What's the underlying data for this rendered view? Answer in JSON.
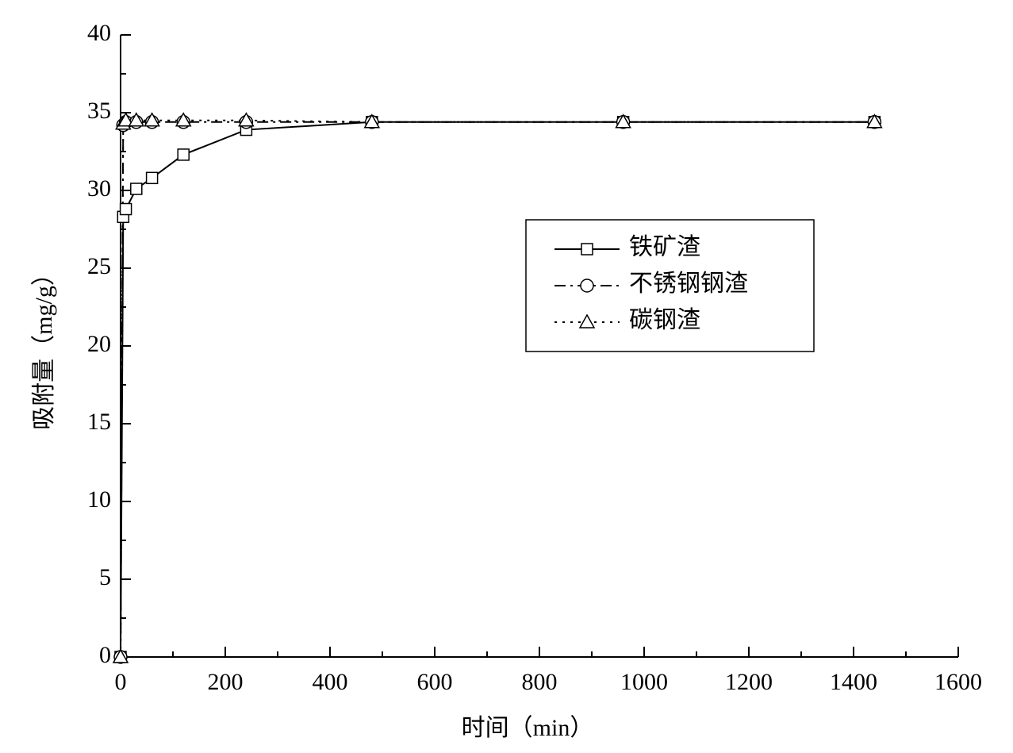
{
  "chart_data": {
    "type": "line",
    "x_label": "时间（min）",
    "y_label": "吸附量（mg/g）",
    "x": [
      0,
      5,
      10,
      30,
      60,
      120,
      240,
      480,
      960,
      1440
    ],
    "series": [
      {
        "name": "铁矿渣",
        "color": "#000000",
        "line_style": "solid",
        "marker": "square",
        "values": [
          0,
          28.3,
          28.8,
          30.1,
          30.8,
          32.3,
          33.9,
          34.4,
          34.4,
          34.4
        ]
      },
      {
        "name": "不锈钢钢渣",
        "color": "#000000",
        "line_style": "dashdot",
        "marker": "circle",
        "values": [
          0,
          34.2,
          34.4,
          34.4,
          34.4,
          34.4,
          34.4,
          34.4,
          34.4,
          34.4
        ]
      },
      {
        "name": "碳钢渣",
        "color": "#000000",
        "line_style": "dotted",
        "marker": "triangle",
        "values": [
          0,
          34.3,
          34.5,
          34.5,
          34.5,
          34.5,
          34.5,
          34.4,
          34.4,
          34.4
        ]
      }
    ],
    "xlim": [
      0,
      1600
    ],
    "xticks": [
      0,
      200,
      400,
      600,
      800,
      1000,
      1200,
      1400,
      1600
    ],
    "ylim": [
      0,
      40
    ],
    "yticks": [
      0,
      5,
      10,
      15,
      20,
      25,
      30,
      35,
      40
    ],
    "grid": false,
    "legend": "right"
  }
}
